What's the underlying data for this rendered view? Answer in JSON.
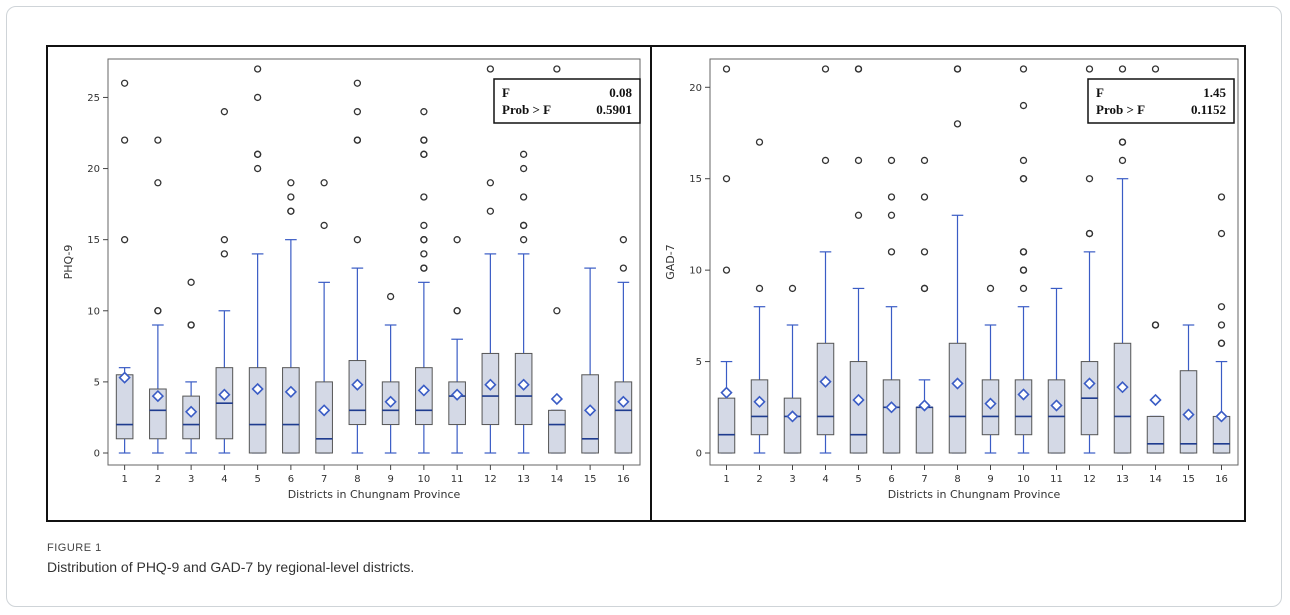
{
  "caption": {
    "label": "FIGURE 1",
    "text": "Distribution of PHQ-9 and GAD-7 by regional-level districts."
  },
  "colors": {
    "box_fill": "#d4d9e6",
    "box_edge": "#555555",
    "median_line": "#1f3c8f",
    "whisker": "#3a5cc5",
    "mean_marker": "#3a5cc5",
    "outlier": "#333333"
  },
  "chart_data": [
    {
      "type": "box",
      "xlabel": "Districts in Chungnam Province",
      "ylabel": "PHQ-9",
      "ylim": [
        0,
        27
      ],
      "yticks": [
        0,
        5,
        10,
        15,
        20,
        25
      ],
      "categories": [
        "1",
        "2",
        "3",
        "4",
        "5",
        "6",
        "7",
        "8",
        "9",
        "10",
        "11",
        "12",
        "13",
        "14",
        "15",
        "16"
      ],
      "stats_box": {
        "rows": [
          [
            "F",
            "0.08"
          ],
          [
            "Prob > F",
            "0.5901"
          ]
        ]
      },
      "boxes": [
        {
          "q1": 1,
          "median": 2,
          "q3": 5.5,
          "wlow": 0,
          "whigh": 6,
          "mean": 5.3,
          "outliers": [
            15,
            22,
            26
          ]
        },
        {
          "q1": 1,
          "median": 3,
          "q3": 4.5,
          "wlow": 0,
          "whigh": 9,
          "mean": 4.0,
          "outliers": [
            10,
            10,
            19,
            22
          ]
        },
        {
          "q1": 1,
          "median": 2,
          "q3": 4,
          "wlow": 0,
          "whigh": 5,
          "mean": 2.9,
          "outliers": [
            9,
            9,
            12
          ]
        },
        {
          "q1": 1,
          "median": 3.5,
          "q3": 6,
          "wlow": 0,
          "whigh": 10,
          "mean": 4.1,
          "outliers": [
            14,
            15,
            24
          ]
        },
        {
          "q1": 0,
          "median": 2,
          "q3": 6,
          "wlow": 0,
          "whigh": 14,
          "mean": 4.5,
          "outliers": [
            20,
            21,
            21,
            25,
            27
          ]
        },
        {
          "q1": 0,
          "median": 2,
          "q3": 6,
          "wlow": 0,
          "whigh": 15,
          "mean": 4.3,
          "outliers": [
            17,
            17,
            18,
            19
          ]
        },
        {
          "q1": 0,
          "median": 1,
          "q3": 5,
          "wlow": 0,
          "whigh": 12,
          "mean": 3.0,
          "outliers": [
            16,
            19
          ]
        },
        {
          "q1": 2,
          "median": 3,
          "q3": 6.5,
          "wlow": 0,
          "whigh": 13,
          "mean": 4.8,
          "outliers": [
            15,
            22,
            22,
            24,
            26
          ]
        },
        {
          "q1": 2,
          "median": 3,
          "q3": 5,
          "wlow": 0,
          "whigh": 9,
          "mean": 3.6,
          "outliers": [
            11
          ]
        },
        {
          "q1": 2,
          "median": 3,
          "q3": 6,
          "wlow": 0,
          "whigh": 12,
          "mean": 4.4,
          "outliers": [
            13,
            13,
            14,
            15,
            15,
            16,
            18,
            21,
            21,
            22,
            22,
            24
          ]
        },
        {
          "q1": 2,
          "median": 4,
          "q3": 5,
          "wlow": 0,
          "whigh": 8,
          "mean": 4.1,
          "outliers": [
            10,
            10,
            15
          ]
        },
        {
          "q1": 2,
          "median": 4,
          "q3": 7,
          "wlow": 0,
          "whigh": 14,
          "mean": 4.8,
          "outliers": [
            17,
            19,
            27
          ]
        },
        {
          "q1": 2,
          "median": 4,
          "q3": 7,
          "wlow": 0,
          "whigh": 14,
          "mean": 4.8,
          "outliers": [
            15,
            16,
            16,
            18,
            20,
            21
          ]
        },
        {
          "q1": 0,
          "median": 2,
          "q3": 3,
          "wlow": 0,
          "whigh": 3,
          "mean": 3.8,
          "outliers": [
            10,
            27
          ]
        },
        {
          "q1": 0,
          "median": 1,
          "q3": 5.5,
          "wlow": 0,
          "whigh": 13,
          "mean": 3.0,
          "outliers": []
        },
        {
          "q1": 0,
          "median": 3,
          "q3": 5,
          "wlow": 0,
          "whigh": 12,
          "mean": 3.6,
          "outliers": [
            13,
            15
          ]
        }
      ]
    },
    {
      "type": "box",
      "xlabel": "Districts in Chungnam Province",
      "ylabel": "GAD-7",
      "ylim": [
        0,
        21
      ],
      "yticks": [
        0,
        5,
        10,
        15,
        20
      ],
      "categories": [
        "1",
        "2",
        "3",
        "4",
        "5",
        "6",
        "7",
        "8",
        "9",
        "10",
        "11",
        "12",
        "13",
        "14",
        "15",
        "16"
      ],
      "stats_box": {
        "rows": [
          [
            "F",
            "1.45"
          ],
          [
            "Prob > F",
            "0.1152"
          ]
        ]
      },
      "boxes": [
        {
          "q1": 0,
          "median": 1,
          "q3": 3,
          "wlow": 0,
          "whigh": 5,
          "mean": 3.3,
          "outliers": [
            10,
            15,
            21
          ]
        },
        {
          "q1": 1,
          "median": 2,
          "q3": 4,
          "wlow": 0,
          "whigh": 8,
          "mean": 2.8,
          "outliers": [
            9,
            17
          ]
        },
        {
          "q1": 0,
          "median": 2,
          "q3": 3,
          "wlow": 0,
          "whigh": 7,
          "mean": 2.0,
          "outliers": [
            9
          ]
        },
        {
          "q1": 1,
          "median": 2,
          "q3": 6,
          "wlow": 0,
          "whigh": 11,
          "mean": 3.9,
          "outliers": [
            16,
            21
          ]
        },
        {
          "q1": 0,
          "median": 1,
          "q3": 5,
          "wlow": 0,
          "whigh": 9,
          "mean": 2.9,
          "outliers": [
            13,
            16,
            21,
            21
          ]
        },
        {
          "q1": 0,
          "median": 2.5,
          "q3": 4,
          "wlow": 0,
          "whigh": 8,
          "mean": 2.5,
          "outliers": [
            11,
            13,
            14,
            16
          ]
        },
        {
          "q1": 0,
          "median": 2.5,
          "q3": 2.5,
          "wlow": 0,
          "whigh": 4,
          "mean": 2.6,
          "outliers": [
            9,
            9,
            11,
            14,
            16
          ]
        },
        {
          "q1": 0,
          "median": 2,
          "q3": 6,
          "wlow": 0,
          "whigh": 13,
          "mean": 3.8,
          "outliers": [
            18,
            21,
            21
          ]
        },
        {
          "q1": 1,
          "median": 2,
          "q3": 4,
          "wlow": 0,
          "whigh": 7,
          "mean": 2.7,
          "outliers": [
            9
          ]
        },
        {
          "q1": 1,
          "median": 2,
          "q3": 4,
          "wlow": 0,
          "whigh": 8,
          "mean": 3.2,
          "outliers": [
            9,
            10,
            10,
            11,
            11,
            15,
            15,
            16,
            19,
            21
          ]
        },
        {
          "q1": 0,
          "median": 2,
          "q3": 4,
          "wlow": 0,
          "whigh": 9,
          "mean": 2.6,
          "outliers": []
        },
        {
          "q1": 1,
          "median": 3,
          "q3": 5,
          "wlow": 0,
          "whigh": 11,
          "mean": 3.8,
          "outliers": [
            12,
            12,
            15,
            21
          ]
        },
        {
          "q1": 0,
          "median": 2,
          "q3": 6,
          "wlow": 0,
          "whigh": 15,
          "mean": 3.6,
          "outliers": [
            16,
            17,
            17,
            21
          ]
        },
        {
          "q1": 0,
          "median": 0.5,
          "q3": 2,
          "wlow": 0,
          "whigh": 2,
          "mean": 2.9,
          "outliers": [
            7,
            7,
            21
          ]
        },
        {
          "q1": 0,
          "median": 0.5,
          "q3": 4.5,
          "wlow": 0,
          "whigh": 7,
          "mean": 2.1,
          "outliers": []
        },
        {
          "q1": 0,
          "median": 0.5,
          "q3": 2,
          "wlow": 0,
          "whigh": 5,
          "mean": 2.0,
          "outliers": [
            6,
            6,
            7,
            8,
            12,
            14
          ]
        }
      ]
    }
  ]
}
